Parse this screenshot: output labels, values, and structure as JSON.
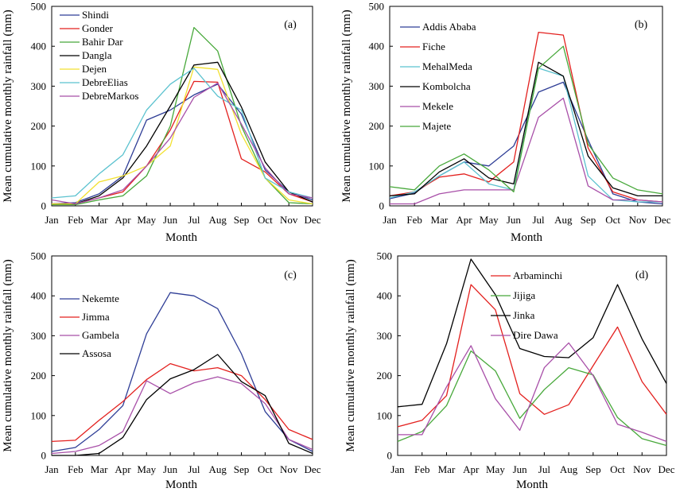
{
  "chart_data": [
    {
      "type": "line",
      "panel_label": "(a)",
      "categories": [
        "Jan",
        "Feb",
        "Mar",
        "Apr",
        "May",
        "Jun",
        "Jul",
        "Aug",
        "Sep",
        "Oct",
        "Nov",
        "Dec"
      ],
      "ylim": [
        0,
        500
      ],
      "yticks": [
        0,
        100,
        200,
        300,
        400,
        500
      ],
      "xlabel": "Month",
      "ylabel": "Mean cumulative monthly rainfall (mm)",
      "legend_position": "top-left",
      "series": [
        {
          "name": "Shindi",
          "color": "#2E3D96",
          "values": [
            5,
            8,
            30,
            75,
            215,
            240,
            278,
            305,
            230,
            90,
            35,
            15
          ]
        },
        {
          "name": "Gonder",
          "color": "#E3201E",
          "values": [
            5,
            5,
            20,
            35,
            100,
            190,
            312,
            310,
            118,
            85,
            30,
            10
          ]
        },
        {
          "name": "Bahir Dar",
          "color": "#47A83A",
          "values": [
            3,
            3,
            15,
            25,
            75,
            200,
            447,
            388,
            200,
            70,
            8,
            5
          ]
        },
        {
          "name": "Dangla",
          "color": "#000000",
          "values": [
            5,
            5,
            25,
            70,
            150,
            250,
            353,
            360,
            248,
            110,
            35,
            10
          ]
        },
        {
          "name": "Dejen",
          "color": "#F2E130",
          "values": [
            5,
            5,
            60,
            75,
            100,
            150,
            348,
            342,
            180,
            70,
            15,
            5
          ]
        },
        {
          "name": "DebreElias",
          "color": "#5BC2CF",
          "values": [
            20,
            25,
            80,
            128,
            240,
            305,
            345,
            275,
            240,
            70,
            35,
            20
          ]
        },
        {
          "name": "DebreMarkos",
          "color": "#A84FA8",
          "values": [
            15,
            5,
            20,
            40,
            100,
            170,
            272,
            308,
            205,
            95,
            30,
            20
          ]
        }
      ]
    },
    {
      "type": "line",
      "panel_label": "(b)",
      "categories": [
        "Jan",
        "Feb",
        "Mar",
        "Apr",
        "May",
        "Jun",
        "Jul",
        "Aug",
        "Sep",
        "Oct",
        "Nov",
        "Dec"
      ],
      "ylim": [
        0,
        500
      ],
      "yticks": [
        0,
        100,
        200,
        300,
        400,
        500
      ],
      "xlabel": "Month",
      "ylabel": "Mean cumulative monthly rainfall (mm)",
      "legend_position": "top-left",
      "series": [
        {
          "name": "Addis Ababa",
          "color": "#2E3D96",
          "values": [
            18,
            32,
            75,
            110,
            100,
            150,
            285,
            310,
            165,
            30,
            10,
            5
          ]
        },
        {
          "name": "Fiche",
          "color": "#E3201E",
          "values": [
            25,
            35,
            72,
            80,
            60,
            110,
            435,
            428,
            145,
            35,
            15,
            10
          ]
        },
        {
          "name": "MehalMeda",
          "color": "#5BC2CF",
          "values": [
            20,
            35,
            75,
            110,
            55,
            40,
            345,
            325,
            75,
            15,
            10,
            10
          ]
        },
        {
          "name": "Kombolcha",
          "color": "#000000",
          "values": [
            25,
            30,
            85,
            118,
            70,
            55,
            360,
            325,
            125,
            45,
            25,
            25
          ]
        },
        {
          "name": "Mekele",
          "color": "#A84FA8",
          "values": [
            5,
            5,
            30,
            40,
            40,
            40,
            222,
            270,
            50,
            15,
            15,
            10
          ]
        },
        {
          "name": "Majete",
          "color": "#47A83A",
          "values": [
            48,
            40,
            100,
            130,
            90,
            35,
            345,
            400,
            155,
            70,
            40,
            30
          ]
        }
      ]
    },
    {
      "type": "line",
      "panel_label": "(c)",
      "categories": [
        "Jan",
        "Feb",
        "Mar",
        "Apr",
        "May",
        "Jun",
        "Jul",
        "Aug",
        "Sep",
        "Oct",
        "Nov",
        "Dec"
      ],
      "ylim": [
        0,
        500
      ],
      "yticks": [
        0,
        100,
        200,
        300,
        400,
        500
      ],
      "xlabel": "Month",
      "ylabel": "Mean cumulative monthly rainfall (mm)",
      "legend_position": "top-left",
      "series": [
        {
          "name": "Nekemte",
          "color": "#2E3D96",
          "values": [
            10,
            20,
            65,
            125,
            305,
            408,
            400,
            368,
            255,
            110,
            40,
            10
          ]
        },
        {
          "name": "Jimma",
          "color": "#E3201E",
          "values": [
            35,
            38,
            88,
            135,
            190,
            230,
            212,
            220,
            200,
            140,
            65,
            40
          ]
        },
        {
          "name": "Gambela",
          "color": "#A84FA8",
          "values": [
            5,
            10,
            25,
            60,
            187,
            155,
            182,
            197,
            180,
            130,
            40,
            15
          ]
        },
        {
          "name": "Assosa",
          "color": "#000000",
          "values": [
            0,
            0,
            5,
            45,
            140,
            192,
            215,
            253,
            185,
            150,
            30,
            5
          ]
        }
      ]
    },
    {
      "type": "line",
      "panel_label": "(d)",
      "categories": [
        "Jan",
        "Feb",
        "Mar",
        "Apr",
        "May",
        "Jun",
        "Jul",
        "Aug",
        "Sep",
        "Oct",
        "Nov",
        "Dec"
      ],
      "ylim": [
        0,
        500
      ],
      "yticks": [
        0,
        100,
        200,
        300,
        400,
        500
      ],
      "xlabel": "Month",
      "ylabel": "Mean cumulative monthly rainfall (mm)",
      "legend_position": "top-right",
      "series": [
        {
          "name": "Arbaminchi",
          "color": "#E3201E",
          "values": [
            72,
            88,
            150,
            428,
            365,
            155,
            103,
            127,
            225,
            322,
            185,
            103
          ]
        },
        {
          "name": "Jijiga",
          "color": "#47A83A",
          "values": [
            35,
            60,
            125,
            262,
            212,
            93,
            165,
            220,
            202,
            95,
            42,
            25
          ]
        },
        {
          "name": "Jinka",
          "color": "#000000",
          "values": [
            122,
            128,
            280,
            492,
            403,
            268,
            248,
            245,
            295,
            428,
            292,
            180
          ]
        },
        {
          "name": "Dire Dawa",
          "color": "#A84FA8",
          "values": [
            52,
            52,
            172,
            275,
            142,
            63,
            220,
            282,
            200,
            78,
            58,
            35
          ]
        }
      ]
    }
  ]
}
